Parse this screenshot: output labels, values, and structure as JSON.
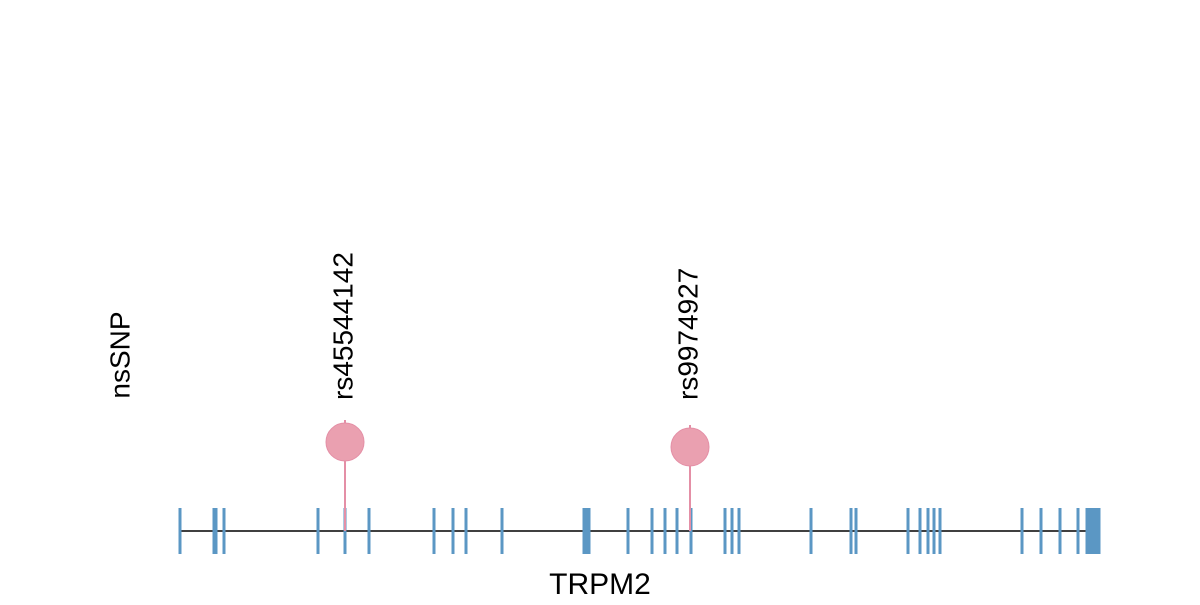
{
  "track_label": "nsSNP",
  "gene": "TRPM2",
  "snps": [
    {
      "label": "rs45544142"
    },
    {
      "label": "rs9974927"
    }
  ]
}
